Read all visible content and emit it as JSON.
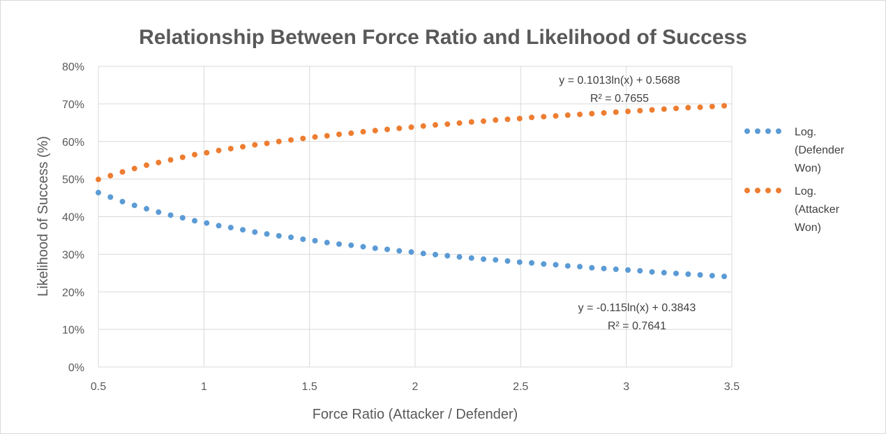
{
  "chart_data": {
    "type": "scatter",
    "title": "Relationship Between Force Ratio and Likelihood of Success",
    "xlabel": "Force Ratio (Attacker / Defender)",
    "ylabel": "Likelihood of Success (%)",
    "xlim": [
      0.5,
      3.5
    ],
    "ylim": [
      0,
      0.8
    ],
    "x_ticks": [
      {
        "value": 0.5,
        "label": "0.5"
      },
      {
        "value": 1,
        "label": "1"
      },
      {
        "value": 1.5,
        "label": "1.5"
      },
      {
        "value": 2,
        "label": "2"
      },
      {
        "value": 2.5,
        "label": "2.5"
      },
      {
        "value": 3,
        "label": "3"
      },
      {
        "value": 3.5,
        "label": "3.5"
      }
    ],
    "y_ticks": [
      {
        "value": 0,
        "label": "0%"
      },
      {
        "value": 0.1,
        "label": "10%"
      },
      {
        "value": 0.2,
        "label": "20%"
      },
      {
        "value": 0.3,
        "label": "30%"
      },
      {
        "value": 0.4,
        "label": "40%"
      },
      {
        "value": 0.5,
        "label": "50%"
      },
      {
        "value": 0.6,
        "label": "60%"
      },
      {
        "value": 0.7,
        "label": "70%"
      },
      {
        "value": 0.8,
        "label": "80%"
      }
    ],
    "grid": true,
    "legend_position": "right",
    "series": [
      {
        "name": "Log. (Defender Won)",
        "legend_lines": [
          "Log.",
          "(Defender",
          "Won)"
        ],
        "color": "#5b9bd5",
        "x": [
          0.5,
          0.557,
          0.614,
          0.671,
          0.728,
          0.785,
          0.842,
          0.899,
          0.956,
          1.013,
          1.07,
          1.127,
          1.184,
          1.241,
          1.298,
          1.355,
          1.412,
          1.469,
          1.526,
          1.583,
          1.64,
          1.697,
          1.754,
          1.811,
          1.868,
          1.925,
          1.982,
          2.039,
          2.096,
          2.153,
          2.21,
          2.267,
          2.324,
          2.381,
          2.438,
          2.495,
          2.552,
          2.609,
          2.666,
          2.723,
          2.78,
          2.837,
          2.894,
          2.951,
          3.008,
          3.065,
          3.122,
          3.179,
          3.236,
          3.293,
          3.35,
          3.407,
          3.464
        ],
        "y": [
          0.464,
          0.452,
          0.44,
          0.43,
          0.421,
          0.412,
          0.404,
          0.397,
          0.389,
          0.383,
          0.376,
          0.371,
          0.365,
          0.359,
          0.354,
          0.349,
          0.345,
          0.34,
          0.336,
          0.331,
          0.327,
          0.324,
          0.32,
          0.316,
          0.313,
          0.309,
          0.306,
          0.302,
          0.299,
          0.296,
          0.293,
          0.29,
          0.287,
          0.285,
          0.282,
          0.279,
          0.277,
          0.274,
          0.272,
          0.269,
          0.267,
          0.264,
          0.262,
          0.26,
          0.258,
          0.256,
          0.253,
          0.251,
          0.249,
          0.247,
          0.245,
          0.243,
          0.241
        ]
      },
      {
        "name": "Log. (Attacker Won)",
        "legend_lines": [
          "Log.",
          "(Attacker",
          "Won)"
        ],
        "color": "#ed7d31",
        "x": [
          0.5,
          0.557,
          0.614,
          0.671,
          0.728,
          0.785,
          0.842,
          0.899,
          0.956,
          1.013,
          1.07,
          1.127,
          1.184,
          1.241,
          1.298,
          1.355,
          1.412,
          1.469,
          1.526,
          1.583,
          1.64,
          1.697,
          1.754,
          1.811,
          1.868,
          1.925,
          1.982,
          2.039,
          2.096,
          2.153,
          2.21,
          2.267,
          2.324,
          2.381,
          2.438,
          2.495,
          2.552,
          2.609,
          2.666,
          2.723,
          2.78,
          2.837,
          2.894,
          2.951,
          3.008,
          3.065,
          3.122,
          3.179,
          3.236,
          3.293,
          3.35,
          3.407,
          3.464
        ],
        "y": [
          0.499,
          0.509,
          0.519,
          0.528,
          0.537,
          0.544,
          0.551,
          0.558,
          0.565,
          0.57,
          0.576,
          0.581,
          0.586,
          0.591,
          0.595,
          0.6,
          0.604,
          0.608,
          0.612,
          0.615,
          0.619,
          0.622,
          0.626,
          0.629,
          0.632,
          0.635,
          0.638,
          0.641,
          0.644,
          0.646,
          0.649,
          0.652,
          0.654,
          0.657,
          0.659,
          0.661,
          0.664,
          0.666,
          0.668,
          0.67,
          0.672,
          0.674,
          0.676,
          0.678,
          0.68,
          0.682,
          0.684,
          0.686,
          0.688,
          0.69,
          0.691,
          0.693,
          0.695
        ]
      }
    ],
    "annotations": {
      "attacker_equation": "y = 0.1013ln(x) + 0.5688",
      "attacker_r2": "R² = 0.7655",
      "defender_equation": "y = -0.115ln(x) + 0.3843",
      "defender_r2": "R² = 0.7641"
    }
  }
}
